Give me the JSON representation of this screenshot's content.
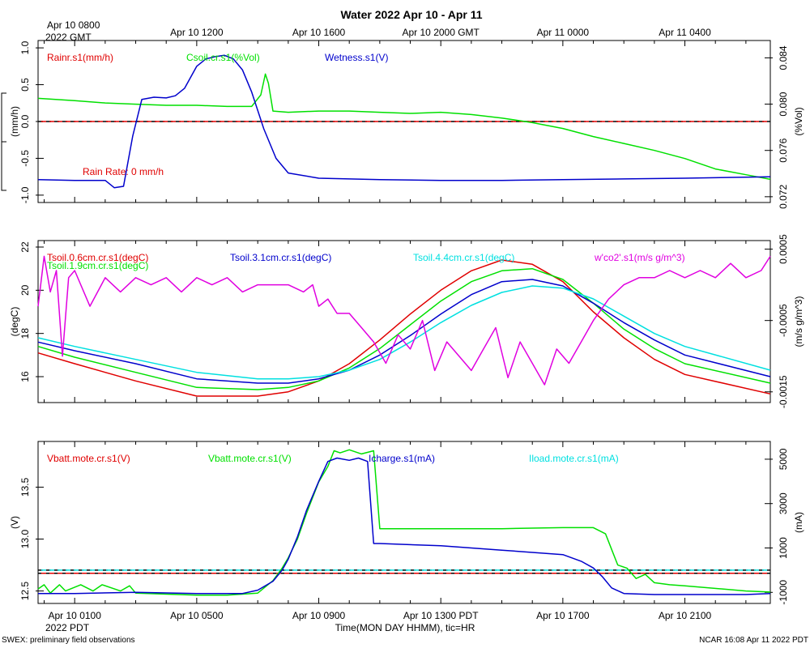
{
  "title": "Water 2022 Apr 10 - Apr 11",
  "top_time_axis": {
    "first_label_line1": "Apr 10 0800",
    "first_label_line2": "2022 GMT",
    "labels": [
      "Apr 10 1200",
      "Apr 10 1600",
      "Apr 10 2000 GMT",
      "Apr 11 0000",
      "Apr 11 0400"
    ],
    "label_hours": [
      4,
      8,
      12,
      16,
      20
    ]
  },
  "bottom_time_axis": {
    "labels": [
      "Apr 10 0100",
      "Apr 10 0500",
      "Apr 10 0900",
      "Apr 10 1300 PDT",
      "Apr 10 1700",
      "Apr 10 2100"
    ],
    "label_hours": [
      0,
      4,
      8,
      12,
      16,
      20
    ],
    "year_label": "2022 PDT",
    "axis_title": "Time(MON DAY HHMM), tic=HR"
  },
  "footer": {
    "left": "SWEX: preliminary field observations",
    "right": "NCAR 16:08 Apr 11 2022 PDT"
  },
  "chart_data": [
    {
      "type": "line",
      "panel": "water",
      "x_unit": "hours since Apr 10 0800 GMT",
      "xlim": [
        -1.2,
        22.8
      ],
      "left_axis": {
        "label": "(mm/h)",
        "ylim": [
          -1.1,
          1.1
        ],
        "ticks": [
          "1.0",
          "0.5",
          "0.0",
          "-0.5",
          "-1.0"
        ],
        "tick_values": [
          1.0,
          0.5,
          0.0,
          -0.5,
          -1.0
        ]
      },
      "right_axis": {
        "label": "(%Vol)",
        "ylim": [
          0.0715,
          0.0855
        ],
        "ticks": [
          "0.084",
          "0.080",
          "0.076",
          "0.072"
        ],
        "tick_values": [
          0.084,
          0.08,
          0.076,
          0.072
        ]
      },
      "legend": [
        "Rainr.s1(mm/h)",
        "Csoil.cr.s1(%Vol)",
        "Wetness.s1(V)"
      ],
      "annotation": "Rain Rate: 0 mm/h",
      "series": [
        {
          "name": "Rainr.s1(mm/h)",
          "color": "#e00000",
          "axis": "left",
          "x": [
            -1.2,
            22.8
          ],
          "y": [
            0.0,
            0.0
          ]
        },
        {
          "name": "Csoil.cr.s1(%Vol)",
          "color": "#00e000",
          "axis": "right",
          "x": [
            -1.2,
            0,
            1,
            2,
            3,
            4,
            5,
            5.8,
            6.1,
            6.25,
            6.35,
            6.5,
            7,
            8,
            9,
            10,
            11,
            12,
            13,
            14,
            15,
            16,
            17,
            18,
            19,
            20,
            21,
            22,
            22.8
          ],
          "y": [
            0.0805,
            0.0803,
            0.0801,
            0.08,
            0.0799,
            0.0799,
            0.0798,
            0.0798,
            0.0808,
            0.0826,
            0.0818,
            0.0794,
            0.0793,
            0.0794,
            0.0794,
            0.0793,
            0.0792,
            0.0793,
            0.0791,
            0.0788,
            0.0784,
            0.0779,
            0.0772,
            0.0766,
            0.076,
            0.0753,
            0.0744,
            0.0739,
            0.0735
          ]
        },
        {
          "name": "Wetness.s1(V)",
          "color": "#0000cc",
          "axis": "left",
          "x": [
            -1.2,
            0,
            1,
            1.3,
            1.6,
            1.9,
            2.2,
            2.6,
            3.0,
            3.3,
            3.6,
            4.0,
            4.3,
            4.6,
            4.9,
            5.2,
            5.5,
            5.8,
            6.2,
            6.6,
            7.0,
            8,
            10,
            12,
            14,
            16,
            18,
            20,
            22.8
          ],
          "y": [
            -0.79,
            -0.8,
            -0.8,
            -0.9,
            -0.88,
            -0.2,
            0.3,
            0.33,
            0.32,
            0.35,
            0.45,
            0.75,
            0.85,
            0.88,
            0.9,
            0.85,
            0.7,
            0.4,
            -0.1,
            -0.5,
            -0.7,
            -0.77,
            -0.79,
            -0.8,
            -0.8,
            -0.79,
            -0.78,
            -0.77,
            -0.75
          ]
        }
      ]
    },
    {
      "type": "line",
      "panel": "soil temperature",
      "x_unit": "hours since Apr 10 0800 GMT",
      "xlim": [
        -1.2,
        22.8
      ],
      "left_axis": {
        "label": "(degC)",
        "ylim": [
          14.8,
          22.3
        ],
        "ticks": [
          "22",
          "20",
          "18",
          "16"
        ],
        "tick_values": [
          22,
          20,
          18,
          16
        ]
      },
      "right_axis": {
        "label": "(m/s g/m^3)",
        "ylim": [
          -0.00165,
          0.00062
        ],
        "ticks": [
          "0.0005",
          "-0.0005",
          "-0.0015"
        ],
        "tick_values": [
          0.0005,
          -0.0005,
          -0.0015
        ]
      },
      "legend": [
        "Tsoil.0.6cm.cr.s1(degC)",
        "Tsoil.1.9cm.cr.s1(degC)",
        "Tsoil.3.1cm.cr.s1(degC)",
        "Tsoil.4.4cm.cr.s1(degC)",
        "w'co2'.s1(m/s g/m^3)"
      ],
      "series": [
        {
          "name": "Tsoil.0.6cm.cr.s1(degC)",
          "color": "#e00000",
          "axis": "left",
          "x": [
            -1.2,
            0,
            2,
            4,
            6,
            7,
            8,
            9,
            10,
            11,
            12,
            13,
            14,
            15,
            16,
            17,
            18,
            19,
            20,
            22.8
          ],
          "y": [
            17.1,
            16.6,
            15.8,
            15.1,
            15.1,
            15.3,
            15.8,
            16.6,
            17.7,
            18.9,
            20.0,
            20.9,
            21.4,
            21.2,
            20.4,
            19.0,
            17.8,
            16.8,
            16.1,
            15.2
          ]
        },
        {
          "name": "Tsoil.1.9cm.cr.s1(degC)",
          "color": "#00e000",
          "axis": "left",
          "x": [
            -1.2,
            0,
            2,
            4,
            6,
            7,
            8,
            9,
            10,
            11,
            12,
            13,
            14,
            15,
            16,
            17,
            18,
            19,
            20,
            22.8
          ],
          "y": [
            17.4,
            16.9,
            16.2,
            15.5,
            15.4,
            15.5,
            15.8,
            16.4,
            17.3,
            18.4,
            19.5,
            20.4,
            20.9,
            21.0,
            20.5,
            19.4,
            18.2,
            17.3,
            16.6,
            15.7
          ]
        },
        {
          "name": "Tsoil.3.1cm.cr.s1(degC)",
          "color": "#0000cc",
          "axis": "left",
          "x": [
            -1.2,
            0,
            2,
            4,
            6,
            7,
            8,
            9,
            10,
            11,
            12,
            13,
            14,
            15,
            16,
            17,
            18,
            19,
            20,
            22.8
          ],
          "y": [
            17.6,
            17.2,
            16.6,
            15.9,
            15.7,
            15.7,
            15.9,
            16.3,
            17.0,
            17.9,
            18.9,
            19.8,
            20.4,
            20.5,
            20.2,
            19.4,
            18.5,
            17.7,
            17.0,
            16.0
          ]
        },
        {
          "name": "Tsoil.4.4cm.cr.s1(degC)",
          "color": "#00e0e0",
          "axis": "left",
          "x": [
            -1.2,
            0,
            2,
            4,
            6,
            7,
            8,
            9,
            10,
            11,
            12,
            13,
            14,
            15,
            16,
            17,
            18,
            19,
            20,
            22.8
          ],
          "y": [
            17.8,
            17.4,
            16.8,
            16.2,
            15.9,
            15.9,
            16.0,
            16.3,
            16.8,
            17.6,
            18.5,
            19.3,
            19.9,
            20.2,
            20.1,
            19.6,
            18.8,
            18.0,
            17.4,
            16.3
          ]
        },
        {
          "name": "w'co2'.s1(m/s g/m^3)",
          "color": "#e000e0",
          "axis": "right",
          "x": [
            -1.2,
            -1.0,
            -0.8,
            -0.6,
            -0.4,
            -0.2,
            0.0,
            0.5,
            1.0,
            1.5,
            2.0,
            2.5,
            3.0,
            3.5,
            4.0,
            4.5,
            5.0,
            5.5,
            6.0,
            6.5,
            7.0,
            7.5,
            7.8,
            8.0,
            8.3,
            8.6,
            9.0,
            9.4,
            9.8,
            10.2,
            10.6,
            11.0,
            11.4,
            11.8,
            12.2,
            12.6,
            13.0,
            13.4,
            13.8,
            14.2,
            14.6,
            15.0,
            15.4,
            15.8,
            16.2,
            16.6,
            17.0,
            17.5,
            18.0,
            18.5,
            19.0,
            19.5,
            20.0,
            20.5,
            21.0,
            21.5,
            22.0,
            22.5,
            22.8
          ],
          "y": [
            -0.0003,
            0.0004,
            -0.0001,
            0.0002,
            -0.001,
            0.0001,
            0.0002,
            -0.0003,
            0.0001,
            -0.0001,
            0.0001,
            0.0,
            0.0001,
            -0.0001,
            0.0001,
            0.0,
            0.0001,
            -0.0001,
            0.0,
            0.0,
            0.0,
            -0.0001,
            0.0,
            -0.0003,
            -0.0002,
            -0.0004,
            -0.0004,
            -0.0006,
            -0.0008,
            -0.0011,
            -0.0007,
            -0.0009,
            -0.0005,
            -0.0012,
            -0.0008,
            -0.001,
            -0.0012,
            -0.0009,
            -0.0006,
            -0.0013,
            -0.0008,
            -0.0011,
            -0.0014,
            -0.0009,
            -0.0011,
            -0.0008,
            -0.0005,
            -0.0002,
            0.0,
            0.0001,
            0.0001,
            0.0002,
            0.0001,
            0.0002,
            0.0001,
            0.0003,
            0.0001,
            0.0002,
            0.0004
          ]
        }
      ]
    },
    {
      "type": "line",
      "panel": "power",
      "x_unit": "hours since Apr 10 0800 GMT",
      "xlim": [
        -1.2,
        22.8
      ],
      "left_axis": {
        "label": "(V)",
        "ylim": [
          12.38,
          13.94
        ],
        "ticks": [
          "13.5",
          "13.0",
          "12.5"
        ],
        "tick_values": [
          13.5,
          13.0,
          12.5
        ]
      },
      "right_axis": {
        "label": "(mA)",
        "ylim": [
          -1500,
          5800
        ],
        "ticks": [
          "5000",
          "3000",
          "1000",
          "-1000"
        ],
        "tick_values": [
          5000,
          3000,
          1000,
          -1000
        ]
      },
      "legend": [
        "Vbatt.mote.cr.s1(V)",
        "Vbatt.mote.cr.s1(V)",
        "Icharge.s1(mA)",
        "Iload.mote.cr.s1(mA)"
      ],
      "series": [
        {
          "name": "Vbatt.mote.cr.s1(V)",
          "color": "#e00000",
          "axis": "left",
          "x": [
            -1.2,
            22.8
          ],
          "y": [
            12.67,
            12.67
          ]
        },
        {
          "name": "Iload.mote.cr.s1(mA)",
          "color": "#00e0e0",
          "axis": "right",
          "x": [
            -1.2,
            22.8
          ],
          "y": [
            0,
            0
          ]
        },
        {
          "name": "Vbatt.mote.cr.s1(V)",
          "color": "#00e000",
          "axis": "left",
          "x": [
            -1.2,
            -1.0,
            -0.8,
            -0.5,
            -0.3,
            0.2,
            0.6,
            0.9,
            1.5,
            1.8,
            2.0,
            3,
            4,
            5,
            6,
            6.5,
            6.8,
            7.0,
            7.3,
            7.6,
            8.0,
            8.3,
            8.5,
            8.7,
            9.0,
            9.4,
            9.8,
            10,
            12,
            14,
            16,
            17,
            17.4,
            17.6,
            17.8,
            18.1,
            18.4,
            18.7,
            19.0,
            19.5,
            20,
            22,
            22.8
          ],
          "y": [
            12.52,
            12.56,
            12.48,
            12.56,
            12.5,
            12.56,
            12.5,
            12.56,
            12.5,
            12.55,
            12.48,
            12.47,
            12.46,
            12.46,
            12.48,
            12.6,
            12.72,
            12.82,
            13.0,
            13.25,
            13.55,
            13.7,
            13.85,
            13.83,
            13.86,
            13.82,
            13.85,
            13.1,
            13.1,
            13.1,
            13.11,
            13.11,
            13.05,
            12.9,
            12.75,
            12.72,
            12.62,
            12.66,
            12.58,
            12.56,
            12.55,
            12.5,
            12.49
          ]
        },
        {
          "name": "Icharge.s1(mA)",
          "color": "#0000cc",
          "axis": "right",
          "x": [
            -1.2,
            0,
            2,
            4,
            5.5,
            6,
            6.5,
            6.8,
            7.0,
            7.3,
            7.6,
            8.0,
            8.3,
            8.6,
            9.0,
            9.3,
            9.6,
            9.8,
            10,
            12,
            14,
            16,
            16.6,
            17,
            17.3,
            17.6,
            18,
            19,
            20,
            22,
            22.8
          ],
          "y": [
            -1050,
            -1050,
            -1000,
            -1050,
            -1050,
            -900,
            -500,
            0,
            500,
            1500,
            2700,
            4000,
            4900,
            5050,
            4950,
            5050,
            4900,
            1200,
            1200,
            1100,
            900,
            700,
            400,
            100,
            -300,
            -800,
            -1050,
            -1100,
            -1100,
            -1100,
            -1050
          ]
        }
      ]
    }
  ]
}
